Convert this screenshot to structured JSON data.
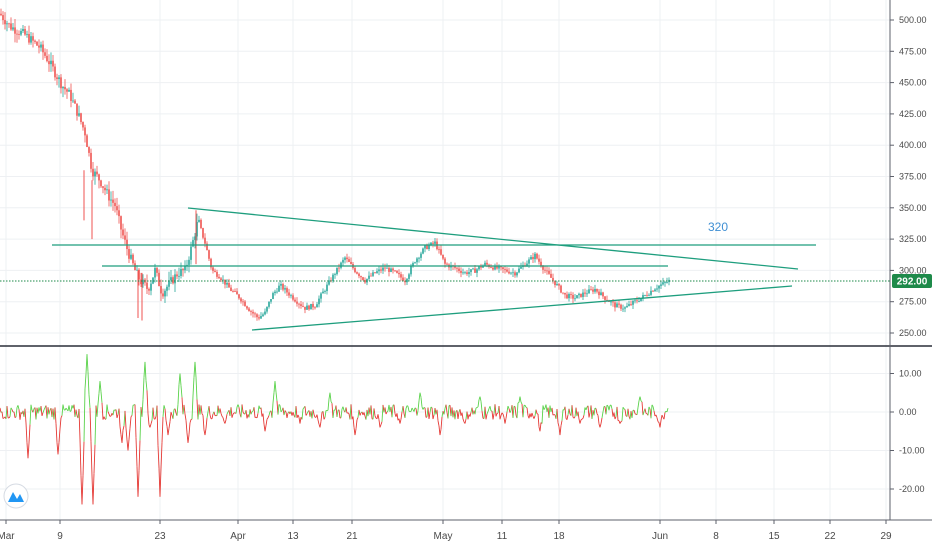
{
  "chart_data": [
    {
      "type": "candlestick",
      "ylim": [
        240,
        510
      ],
      "y_ticks": [
        "500.00",
        "475.00",
        "450.00",
        "425.00",
        "400.00",
        "375.00",
        "350.00",
        "325.00",
        "300.00",
        "275.00",
        "250.00"
      ],
      "y_tick_values": [
        500,
        475,
        450,
        425,
        400,
        375,
        350,
        325,
        300,
        275,
        250
      ],
      "x_ticks": [
        "Mar",
        "9",
        "23",
        "Apr",
        "13",
        "21",
        "May",
        "11",
        "18",
        "Jun",
        "8",
        "15",
        "22",
        "29"
      ],
      "price_path": [
        [
          0,
          505
        ],
        [
          10,
          495
        ],
        [
          25,
          488
        ],
        [
          40,
          478
        ],
        [
          48,
          468
        ],
        [
          55,
          458
        ],
        [
          62,
          448
        ],
        [
          70,
          440
        ],
        [
          78,
          425
        ],
        [
          85,
          410
        ],
        [
          92,
          380
        ],
        [
          100,
          372
        ],
        [
          108,
          360
        ],
        [
          115,
          352
        ],
        [
          122,
          330
        ],
        [
          128,
          315
        ],
        [
          135,
          300
        ],
        [
          140,
          292
        ],
        [
          148,
          285
        ],
        [
          155,
          300
        ],
        [
          162,
          282
        ],
        [
          170,
          290
        ],
        [
          178,
          298
        ],
        [
          185,
          300
        ],
        [
          192,
          320
        ],
        [
          198,
          340
        ],
        [
          205,
          322
        ],
        [
          212,
          300
        ],
        [
          220,
          295
        ],
        [
          230,
          285
        ],
        [
          240,
          278
        ],
        [
          250,
          268
        ],
        [
          258,
          262
        ],
        [
          265,
          266
        ],
        [
          272,
          280
        ],
        [
          280,
          288
        ],
        [
          288,
          282
        ],
        [
          296,
          276
        ],
        [
          305,
          270
        ],
        [
          315,
          272
        ],
        [
          325,
          285
        ],
        [
          335,
          298
        ],
        [
          345,
          310
        ],
        [
          355,
          300
        ],
        [
          365,
          292
        ],
        [
          375,
          298
        ],
        [
          385,
          302
        ],
        [
          395,
          298
        ],
        [
          405,
          292
        ],
        [
          415,
          308
        ],
        [
          425,
          318
        ],
        [
          435,
          322
        ],
        [
          445,
          305
        ],
        [
          455,
          302
        ],
        [
          465,
          298
        ],
        [
          475,
          300
        ],
        [
          485,
          305
        ],
        [
          495,
          302
        ],
        [
          505,
          300
        ],
        [
          515,
          298
        ],
        [
          525,
          305
        ],
        [
          535,
          312
        ],
        [
          545,
          300
        ],
        [
          555,
          290
        ],
        [
          565,
          280
        ],
        [
          575,
          278
        ],
        [
          585,
          282
        ],
        [
          595,
          285
        ],
        [
          605,
          278
        ],
        [
          615,
          272
        ],
        [
          625,
          270
        ],
        [
          635,
          275
        ],
        [
          645,
          280
        ],
        [
          655,
          286
        ],
        [
          665,
          290
        ],
        [
          670,
          292
        ]
      ],
      "last_price": "292.00",
      "annotations": [
        "320"
      ]
    },
    {
      "type": "line",
      "ylim": [
        -27,
        17
      ],
      "y_ticks": [
        "10.00",
        "0.00",
        "-10.00",
        "-20.00"
      ],
      "y_tick_values": [
        10,
        0,
        -10,
        -20
      ],
      "spikes": [
        [
          28,
          -12
        ],
        [
          58,
          -11
        ],
        [
          82,
          -24
        ],
        [
          87,
          15
        ],
        [
          93,
          -24
        ],
        [
          100,
          8
        ],
        [
          122,
          -8
        ],
        [
          128,
          -10
        ],
        [
          138,
          -22
        ],
        [
          145,
          13
        ],
        [
          150,
          -4
        ],
        [
          160,
          -22
        ],
        [
          168,
          -6
        ],
        [
          180,
          10
        ],
        [
          188,
          -8
        ],
        [
          195,
          13
        ],
        [
          205,
          -6
        ],
        [
          225,
          -3
        ],
        [
          265,
          -5
        ],
        [
          275,
          8
        ],
        [
          300,
          -3
        ],
        [
          320,
          -4
        ],
        [
          330,
          5
        ],
        [
          355,
          -6
        ],
        [
          380,
          -4
        ],
        [
          400,
          -3
        ],
        [
          420,
          5
        ],
        [
          440,
          -6
        ],
        [
          465,
          -3
        ],
        [
          480,
          4
        ],
        [
          505,
          -3
        ],
        [
          520,
          4
        ],
        [
          540,
          -5
        ],
        [
          560,
          -6
        ],
        [
          580,
          -3
        ],
        [
          600,
          -4
        ],
        [
          620,
          -3
        ],
        [
          640,
          4
        ],
        [
          660,
          -4
        ],
        [
          668,
          1
        ]
      ]
    }
  ],
  "colors": {
    "up": "#26a69a",
    "down": "#ef5350",
    "trendline": "#1e9e7e",
    "osc_pos": "#5ad24a",
    "osc_neg": "#e53935",
    "price_tag": "#1e8a4a",
    "grid": "#eef0f3"
  }
}
